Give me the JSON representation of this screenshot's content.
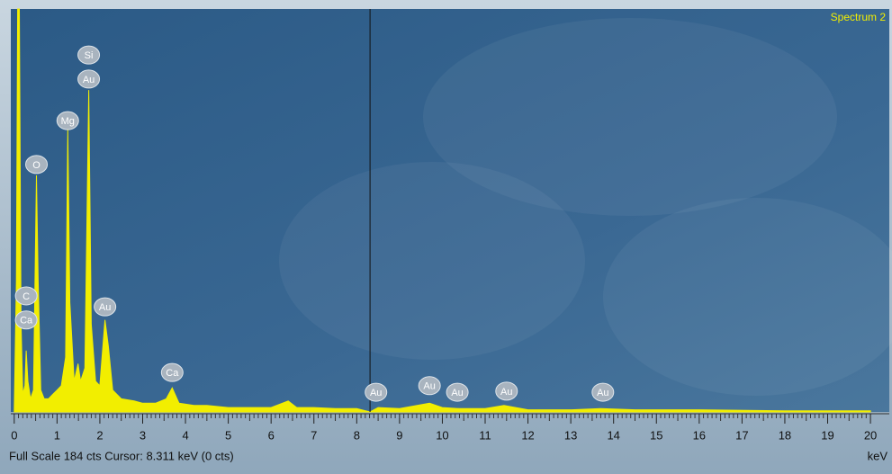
{
  "chart_data": {
    "type": "area",
    "title": "Spectrum 2",
    "status": "Full Scale 184 cts  Cursor: 8.311 keV (0 cts)",
    "x_label": "keV",
    "cursor": 8.311,
    "color": "#f2ee00",
    "xlim": [
      -0.08,
      20.44
    ],
    "ylim": [
      0,
      184
    ],
    "xticks": [
      0,
      1,
      2,
      3,
      4,
      5,
      6,
      7,
      8,
      9,
      10,
      11,
      12,
      13,
      14,
      15,
      16,
      17,
      18,
      19,
      20
    ],
    "series": [
      {
        "name": "Spectrum 2",
        "color": "#f2ee00",
        "x": [
          0,
          0.05,
          0.08,
          0.12,
          0.16,
          0.2,
          0.25,
          0.28,
          0.32,
          0.38,
          0.45,
          0.52,
          0.56,
          0.62,
          0.7,
          0.8,
          0.9,
          1,
          1.1,
          1.2,
          1.25,
          1.3,
          1.4,
          1.49,
          1.55,
          1.65,
          1.74,
          1.8,
          1.9,
          2,
          2.12,
          2.2,
          2.3,
          2.5,
          2.8,
          3,
          3.3,
          3.55,
          3.69,
          3.85,
          4.2,
          4.5,
          5,
          5.5,
          6,
          6.4,
          6.6,
          7,
          7.5,
          8,
          8.31,
          8.5,
          9,
          9.7,
          10,
          10.4,
          11,
          11.44,
          12,
          13,
          13.7,
          14.5,
          16,
          18,
          20
        ],
        "values": [
          0,
          60,
          184,
          184,
          40,
          8,
          12,
          28,
          14,
          6,
          10,
          108,
          60,
          10,
          6,
          6,
          8,
          10,
          12,
          25,
          129,
          50,
          14,
          22,
          14,
          20,
          147,
          40,
          14,
          12,
          42,
          30,
          10,
          6,
          5,
          4,
          4,
          6,
          11,
          4,
          3,
          3,
          2,
          2,
          2,
          5,
          2,
          2,
          1.5,
          1.5,
          0,
          2,
          1.5,
          4,
          2,
          1.5,
          1.5,
          3,
          1,
          1,
          1.5,
          1,
          1,
          0.5,
          0.5
        ]
      }
    ],
    "annotations": [
      {
        "text": "Si",
        "x": 1.74,
        "y": 163
      },
      {
        "text": "Au",
        "x": 1.74,
        "y": 152
      },
      {
        "text": "Mg",
        "x": 1.25,
        "y": 133
      },
      {
        "text": "O",
        "x": 0.52,
        "y": 113
      },
      {
        "text": "C",
        "x": 0.28,
        "y": 53
      },
      {
        "text": "Ca",
        "x": 0.28,
        "y": 42
      },
      {
        "text": "Au",
        "x": 2.12,
        "y": 48
      },
      {
        "text": "Ca",
        "x": 3.69,
        "y": 18
      },
      {
        "text": "Au",
        "x": 8.45,
        "y": 9
      },
      {
        "text": "Au",
        "x": 9.7,
        "y": 12
      },
      {
        "text": "Au",
        "x": 10.35,
        "y": 9
      },
      {
        "text": "Au",
        "x": 11.5,
        "y": 9.5
      },
      {
        "text": "Au",
        "x": 13.75,
        "y": 9
      }
    ]
  }
}
